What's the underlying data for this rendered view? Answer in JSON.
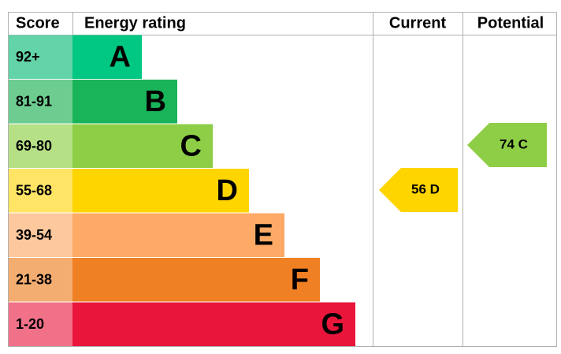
{
  "header": {
    "score": "Score",
    "rating": "Energy rating",
    "current": "Current",
    "potential": "Potential"
  },
  "bands": [
    {
      "score": "92+",
      "letter": "A"
    },
    {
      "score": "81-91",
      "letter": "B"
    },
    {
      "score": "69-80",
      "letter": "C"
    },
    {
      "score": "55-68",
      "letter": "D"
    },
    {
      "score": "39-54",
      "letter": "E"
    },
    {
      "score": "21-38",
      "letter": "F"
    },
    {
      "score": "1-20",
      "letter": "G"
    }
  ],
  "current": {
    "label": "56 D"
  },
  "potential": {
    "label": "74 C"
  }
}
